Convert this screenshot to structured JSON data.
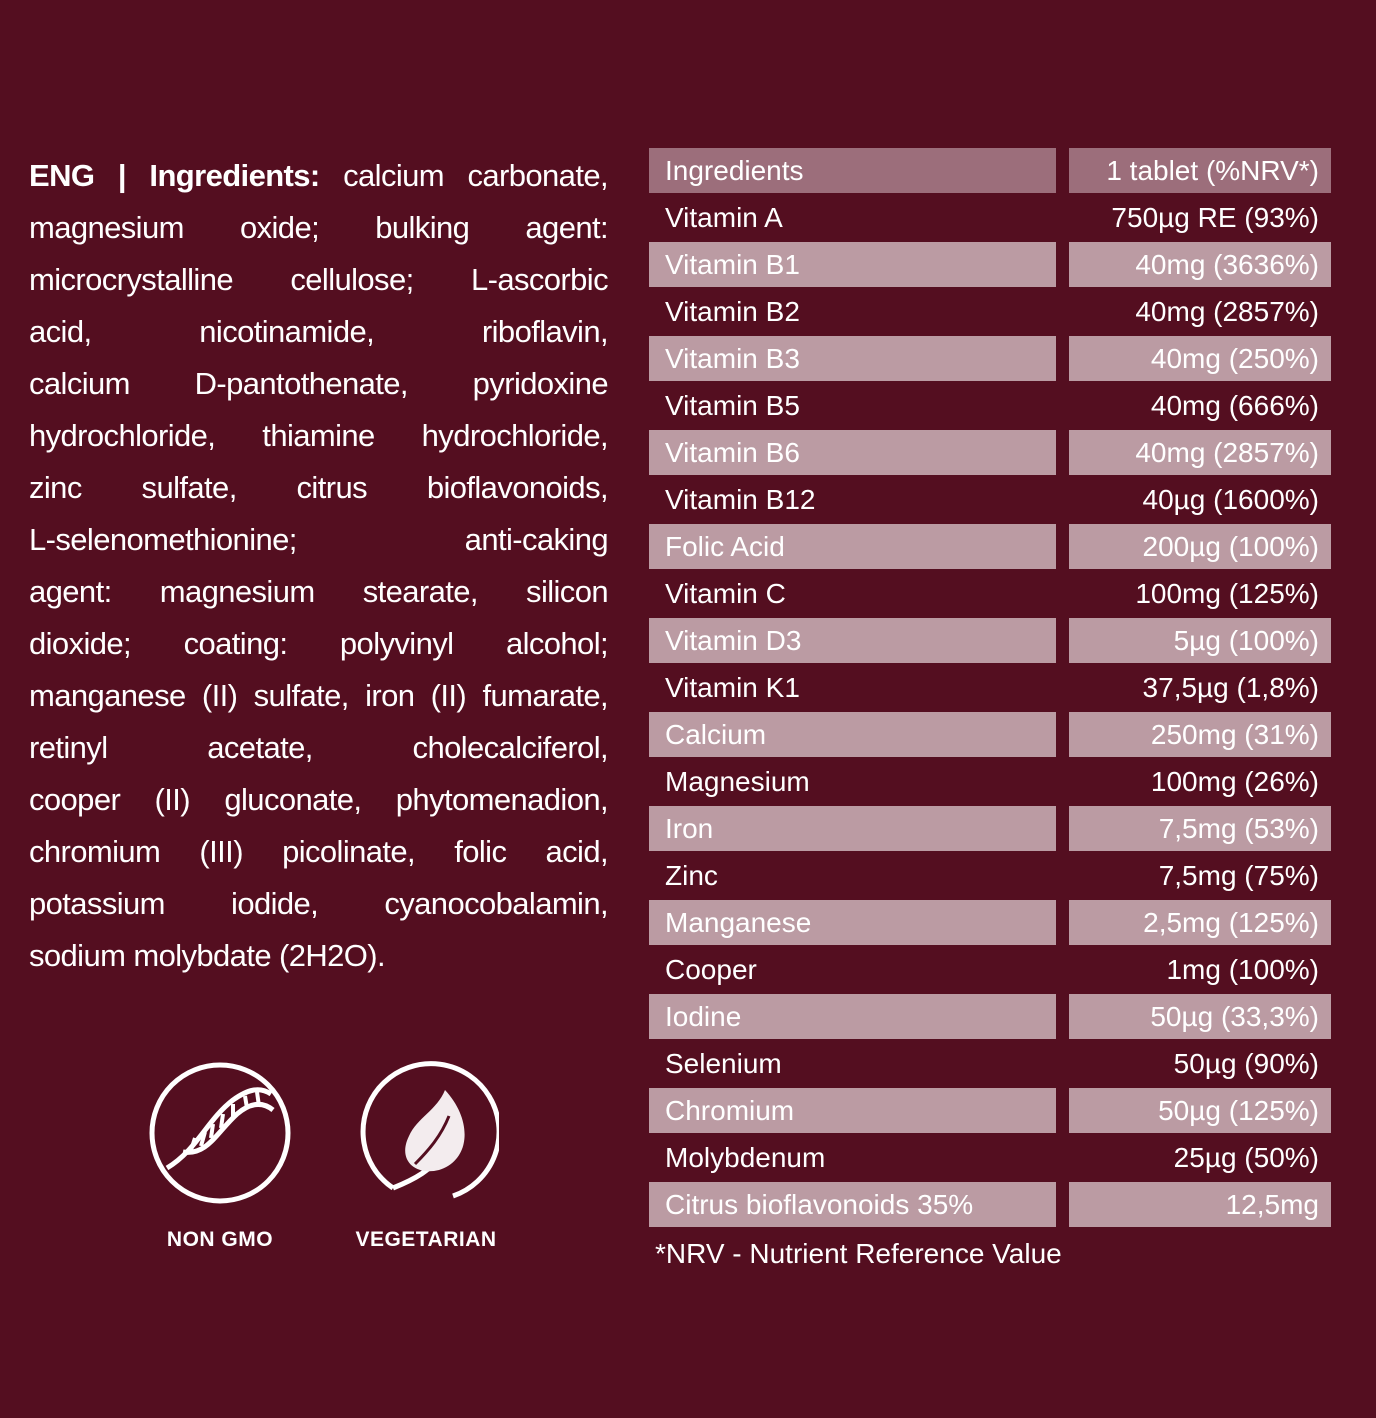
{
  "ingredients_text": {
    "prefix": "ENG | Ingredients:",
    "lines": [
      " calcium carbonate,",
      "magnesium oxide; bulking agent:",
      "microcrystalline cellulose; L-ascorbic",
      "acid, nicotinamide, riboflavin,",
      "calcium D-pantothenate, pyridoxine",
      "hydrochloride, thiamine hydrochloride,",
      "zinc sulfate, citrus bioflavonoids,",
      "L-selenomethionine; anti-caking",
      "agent: magnesium stearate, silicon",
      "dioxide; coating: polyvinyl alcohol;",
      "manganese (II) sulfate, iron (II) fumarate,",
      "retinyl acetate, cholecalciferol,",
      "cooper (II) gluconate, phytomenadion,",
      "chromium (III) picolinate, folic acid,",
      "potassium iodide, cyanocobalamin,",
      "sodium molybdate (2H2O)."
    ]
  },
  "badges": [
    {
      "icon": "dna-icon",
      "label": "NON GMO"
    },
    {
      "icon": "leaf-icon",
      "label": "VEGETARIAN"
    }
  ],
  "table": {
    "header": [
      "Ingredients",
      "1 tablet (%NRV*)"
    ],
    "rows": [
      [
        "Vitamin A",
        "750µg RE (93%)"
      ],
      [
        "Vitamin B1",
        "40mg (3636%)"
      ],
      [
        "Vitamin B2",
        "40mg (2857%)"
      ],
      [
        "Vitamin B3",
        "40mg (250%)"
      ],
      [
        "Vitamin B5",
        "40mg (666%)"
      ],
      [
        "Vitamin B6",
        "40mg (2857%)"
      ],
      [
        "Vitamin B12",
        "40µg (1600%)"
      ],
      [
        "Folic Acid",
        "200µg (100%)"
      ],
      [
        "Vitamin C",
        "100mg (125%)"
      ],
      [
        "Vitamin D3",
        "5µg (100%)"
      ],
      [
        "Vitamin K1",
        "37,5µg (1,8%)"
      ],
      [
        "Calcium",
        "250mg (31%)"
      ],
      [
        "Magnesium",
        "100mg (26%)"
      ],
      [
        "Iron",
        "7,5mg (53%)"
      ],
      [
        "Zinc",
        "7,5mg (75%)"
      ],
      [
        "Manganese",
        "2,5mg (125%)"
      ],
      [
        "Cooper",
        "1mg (100%)"
      ],
      [
        "Iodine",
        "50µg (33,3%)"
      ],
      [
        "Selenium",
        "50µg (90%)"
      ],
      [
        "Chromium",
        "50µg (125%)"
      ],
      [
        "Molybdenum",
        "25µg (50%)"
      ],
      [
        "Citrus bioflavonoids 35%",
        "12,5mg"
      ]
    ],
    "footnote": "*NRV - Nutrient Reference Value"
  },
  "colors": {
    "background": "#540e20",
    "header_cell": "#9c6e7b",
    "shaded_cell": "#bb9ba3",
    "text": "#ffffff"
  }
}
